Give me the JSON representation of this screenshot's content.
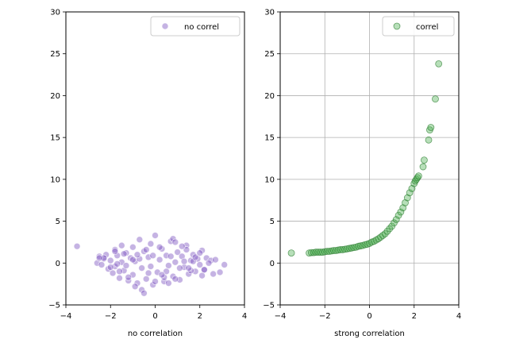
{
  "chart_data": [
    {
      "type": "scatter",
      "xlabel": "no correlation",
      "ylabel": "",
      "xlim": [
        -4,
        4
      ],
      "ylim": [
        -5,
        30
      ],
      "xticks": [
        -4,
        -2,
        0,
        2,
        4
      ],
      "yticks": [
        -5,
        0,
        5,
        10,
        15,
        20,
        25,
        30
      ],
      "grid": false,
      "legend": "top-right",
      "series": [
        {
          "name": "no correl",
          "color": "#7e57c2",
          "edgecolor": "#ffffff",
          "x": [
            -3.5,
            -2.6,
            -2.5,
            -2.4,
            -2.3,
            -2.2,
            -2.1,
            -2.0,
            -1.9,
            -1.8,
            -1.8,
            -1.7,
            -1.6,
            -1.5,
            -1.5,
            -1.4,
            -1.3,
            -1.2,
            -1.1,
            -1.0,
            -1.0,
            -0.9,
            -0.8,
            -0.7,
            -0.6,
            -0.5,
            -0.4,
            -0.3,
            -0.2,
            -0.1,
            0.0,
            0.1,
            0.2,
            0.3,
            0.4,
            0.5,
            0.6,
            0.7,
            0.8,
            0.9,
            1.0,
            1.1,
            1.2,
            1.3,
            1.4,
            1.5,
            1.6,
            1.7,
            1.8,
            1.9,
            2.0,
            2.1,
            2.2,
            2.3,
            2.5,
            2.6,
            2.7,
            2.9,
            3.1,
            -0.6,
            -0.5,
            0.8,
            0.9,
            -1.7,
            1.4,
            2.1,
            -2.3,
            -0.9,
            0.4,
            1.7,
            -1.4,
            -0.2,
            0.7,
            1.1,
            -1.0,
            0.2,
            -0.3,
            1.6,
            -1.8,
            2.4,
            0.0,
            -0.7,
            1.2,
            0.5,
            -1.3,
            -0.4,
            0.9,
            1.8,
            -2.0,
            2.0,
            -1.2,
            0.3,
            -0.1,
            1.5,
            -0.8,
            0.6,
            1.3,
            -1.6,
            -2.5,
            2.2
          ],
          "y": [
            2.0,
            0.0,
            0.8,
            -0.2,
            0.5,
            1.0,
            -0.7,
            0.3,
            -1.2,
            1.6,
            -0.4,
            0.9,
            -1.8,
            2.1,
            0.1,
            -0.9,
            1.2,
            -2.1,
            0.6,
            1.9,
            -1.4,
            0.2,
            -2.4,
            2.8,
            -0.6,
            1.4,
            -1.9,
            0.7,
            2.3,
            -2.6,
            3.3,
            -1.1,
            0.4,
            1.7,
            -2.2,
            0.9,
            -0.3,
            2.6,
            -1.6,
            0.1,
            1.3,
            -2.0,
            0.8,
            -0.5,
            2.1,
            -1.3,
            0.3,
            1.0,
            -1.0,
            0.5,
            -0.2,
            1.5,
            -0.8,
            0.6,
            0.3,
            -1.3,
            0.4,
            -1.1,
            -0.2,
            -3.2,
            -3.6,
            2.9,
            2.5,
            -0.1,
            1.6,
            -1.5,
            0.6,
            -2.8,
            -1.7,
            0.2,
            1.1,
            -0.4,
            0.8,
            -0.6,
            0.4,
            1.9,
            -1.2,
            -0.9,
            1.4,
            0.0,
            -2.2,
            0.5,
            2.0,
            -1.0,
            -0.3,
            1.6,
            -1.9,
            0.7,
            -0.5,
            1.2,
            -1.7,
            -1.4,
            0.9,
            -0.6,
            1.0,
            -2.4,
            0.2,
            -1.0,
            0.6,
            -0.8
          ]
        }
      ]
    },
    {
      "type": "scatter",
      "xlabel": "strong correlation",
      "ylabel": "",
      "xlim": [
        -4,
        4
      ],
      "ylim": [
        -5,
        30
      ],
      "xticks": [
        -4,
        -2,
        0,
        2,
        4
      ],
      "yticks": [
        -5,
        0,
        5,
        10,
        15,
        20,
        25,
        30
      ],
      "grid": true,
      "legend": "top-right",
      "series": [
        {
          "name": "correl",
          "color": "#4caf50",
          "edgecolor": "#2e7d32",
          "x": [
            -3.5,
            -2.7,
            -2.6,
            -2.5,
            -2.4,
            -2.3,
            -2.2,
            -2.1,
            -2.0,
            -1.9,
            -1.8,
            -1.7,
            -1.6,
            -1.5,
            -1.4,
            -1.3,
            -1.2,
            -1.1,
            -1.0,
            -0.9,
            -0.8,
            -0.7,
            -0.6,
            -0.5,
            -0.4,
            -0.3,
            -0.2,
            -0.1,
            0.0,
            0.1,
            0.2,
            0.3,
            0.4,
            0.5,
            0.6,
            0.7,
            0.8,
            0.9,
            1.0,
            1.1,
            1.2,
            1.3,
            1.4,
            1.5,
            1.6,
            1.7,
            1.8,
            1.9,
            2.0,
            2.05,
            2.1,
            2.15,
            2.2,
            2.4,
            2.45,
            2.65,
            2.7,
            2.75,
            2.95,
            3.1
          ],
          "y": [
            1.2,
            1.2,
            1.25,
            1.25,
            1.3,
            1.3,
            1.3,
            1.3,
            1.35,
            1.4,
            1.4,
            1.45,
            1.5,
            1.5,
            1.55,
            1.6,
            1.6,
            1.65,
            1.7,
            1.75,
            1.8,
            1.85,
            1.9,
            2.0,
            2.05,
            2.1,
            2.2,
            2.25,
            2.35,
            2.5,
            2.6,
            2.75,
            2.9,
            3.1,
            3.3,
            3.5,
            3.8,
            4.1,
            4.4,
            4.8,
            5.2,
            5.7,
            6.1,
            6.6,
            7.2,
            7.8,
            8.4,
            8.9,
            9.5,
            9.8,
            10.0,
            10.2,
            10.4,
            11.5,
            12.3,
            14.7,
            15.9,
            16.2,
            19.6,
            23.8
          ]
        }
      ]
    }
  ]
}
